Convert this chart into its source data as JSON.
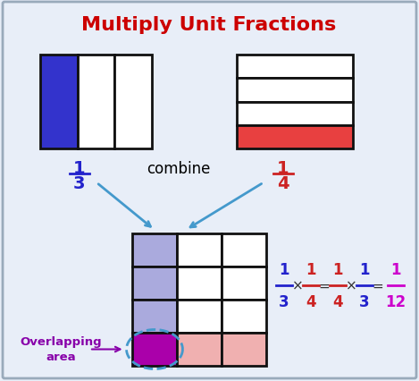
{
  "title": "Multiply Unit Fractions",
  "title_color": "#cc0000",
  "title_fontsize": 16,
  "bg_color": "#e8eef8",
  "box_border_color": "#111111",
  "blue_fill": "#3333cc",
  "red_fill": "#e84040",
  "light_blue_fill": "#aaaadd",
  "pink_fill": "#f0b0b0",
  "magenta_fill": "#aa00aa",
  "combine_text": "combine",
  "frac1_3_color": "#2222cc",
  "frac1_4_color": "#cc2222",
  "frac1_12_color": "#cc00cc",
  "overlap_label_color": "#8800aa",
  "arrow_color": "#4499cc"
}
